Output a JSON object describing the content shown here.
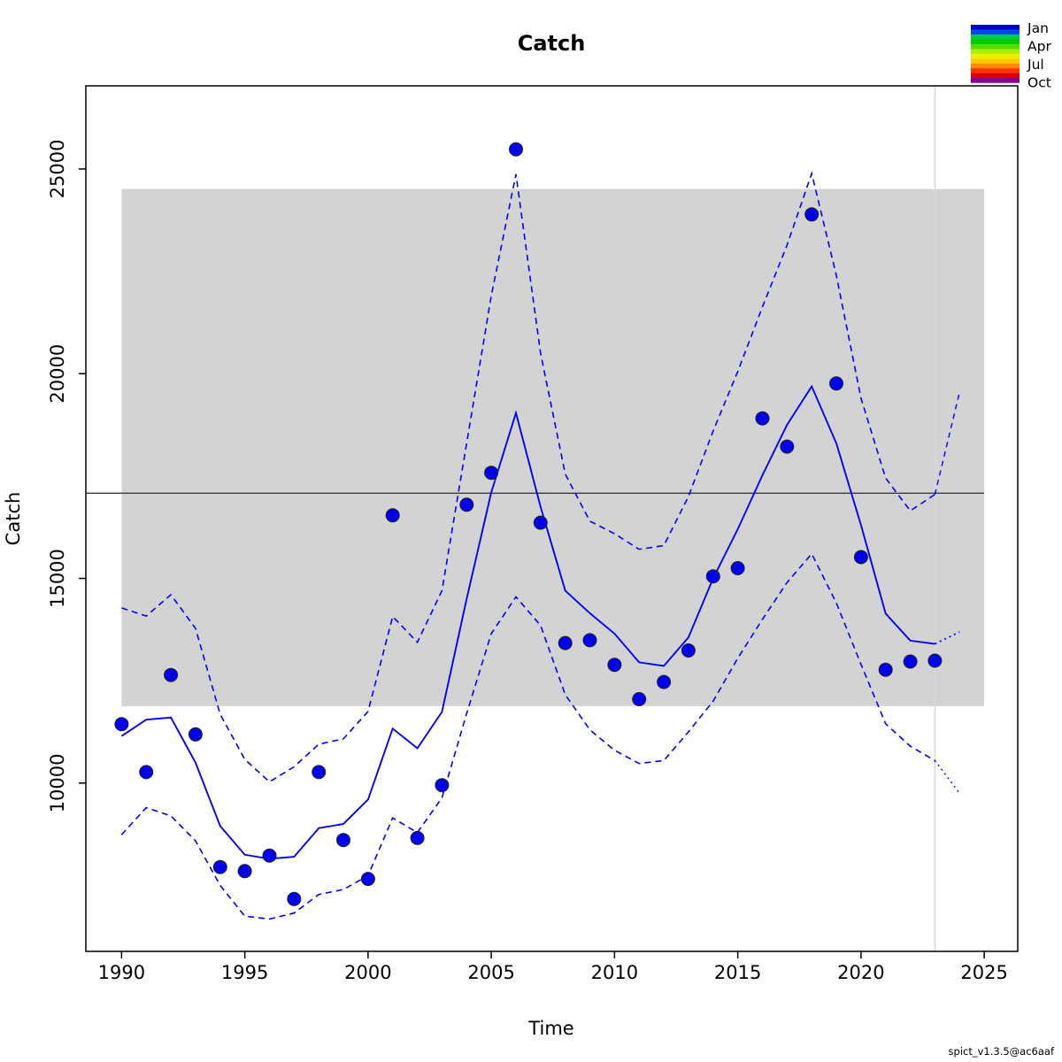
{
  "version_label": "spict_v1.3.5@ac6aaf",
  "legend": {
    "labels": [
      "Jan",
      "Apr",
      "Jul",
      "Oct"
    ],
    "colorbar_colors": [
      "#0000cc",
      "#0044ff",
      "#00cc44",
      "#00cc00",
      "#55dd00",
      "#aaee00",
      "#eeee00",
      "#ffcc00",
      "#ff8800",
      "#ff3300",
      "#dd0000",
      "#880088"
    ]
  },
  "colors": {
    "series_blue": "#0000ff",
    "point_fill": "#0000ee",
    "point_stroke": "#222222",
    "band_gray": "#d3d3d3",
    "reference_line": "#3a3a3a",
    "current_time_line": "#d8d8d8",
    "border": "#000000"
  },
  "chart_data": {
    "type": "line",
    "title": "Catch",
    "xlabel": "Time",
    "ylabel": "Catch",
    "grid": false,
    "legend_position": "top-right",
    "x_ticks": [
      1990,
      1995,
      2000,
      2005,
      2010,
      2015,
      2020,
      2025
    ],
    "y_ticks": [
      10000,
      15000,
      20000,
      25000
    ],
    "xlim": [
      1988.55,
      2026.36
    ],
    "ylim": [
      5890,
      27030
    ],
    "reference_band": {
      "x0": 1990,
      "x1": 2025,
      "y0": 11880,
      "y1": 24510
    },
    "reference_line": {
      "y": 17080
    },
    "current_time_line": {
      "x": 2023
    },
    "years": [
      1990,
      1991,
      1992,
      1993,
      1994,
      1995,
      1996,
      1997,
      1998,
      1999,
      2000,
      2001,
      2002,
      2003,
      2004,
      2005,
      2006,
      2007,
      2008,
      2009,
      2010,
      2011,
      2012,
      2013,
      2014,
      2015,
      2016,
      2017,
      2018,
      2019,
      2020,
      2021,
      2022,
      2023
    ],
    "series": [
      {
        "name": "catch-observations",
        "type": "scatter",
        "values": [
          11440,
          10270,
          12640,
          11190,
          7950,
          7850,
          8230,
          7170,
          10270,
          8610,
          7660,
          16540,
          8660,
          9950,
          16800,
          17580,
          25480,
          16360,
          13420,
          13490,
          12890,
          12050,
          12470,
          13240,
          15050,
          15250,
          18910,
          18220,
          23890,
          19760,
          15520,
          12770,
          12970,
          12990
        ]
      },
      {
        "name": "catch-estimate",
        "type": "line",
        "style": "solid",
        "values": [
          11150,
          11550,
          11600,
          10500,
          8950,
          8250,
          8150,
          8200,
          8900,
          9000,
          9600,
          11330,
          10850,
          11740,
          14500,
          17100,
          19040,
          16750,
          14700,
          14150,
          13650,
          12950,
          12860,
          13560,
          15000,
          16200,
          17520,
          18750,
          19690,
          18300,
          16300,
          14140,
          13480,
          13400
        ]
      },
      {
        "name": "upper-95-ci",
        "type": "line",
        "style": "dashed",
        "values": [
          14280,
          14080,
          14600,
          13780,
          11680,
          10580,
          10030,
          10400,
          10950,
          11080,
          11750,
          14070,
          13440,
          14700,
          18300,
          21900,
          24870,
          20500,
          17550,
          16400,
          16090,
          15710,
          15800,
          17000,
          18600,
          20050,
          21630,
          23140,
          24890,
          22400,
          19400,
          17450,
          16650,
          17050
        ]
      },
      {
        "name": "lower-95-ci",
        "type": "line",
        "style": "dashed",
        "values": [
          8740,
          9400,
          9200,
          8590,
          7500,
          6750,
          6680,
          6825,
          7280,
          7400,
          7740,
          9150,
          8790,
          9640,
          11700,
          13650,
          14550,
          13850,
          12160,
          11300,
          10800,
          10480,
          10550,
          11250,
          12000,
          13050,
          14000,
          14900,
          15600,
          14400,
          12900,
          11450,
          10900,
          10550
        ]
      }
    ],
    "forecast": {
      "estimate": {
        "x": [
          2023,
          2024
        ],
        "y": [
          13400,
          13690
        ]
      },
      "upper": {
        "x": [
          2023,
          2024
        ],
        "y": [
          17050,
          19550
        ]
      },
      "lower": {
        "x": [
          2023,
          2024
        ],
        "y": [
          10550,
          9750
        ]
      }
    }
  }
}
